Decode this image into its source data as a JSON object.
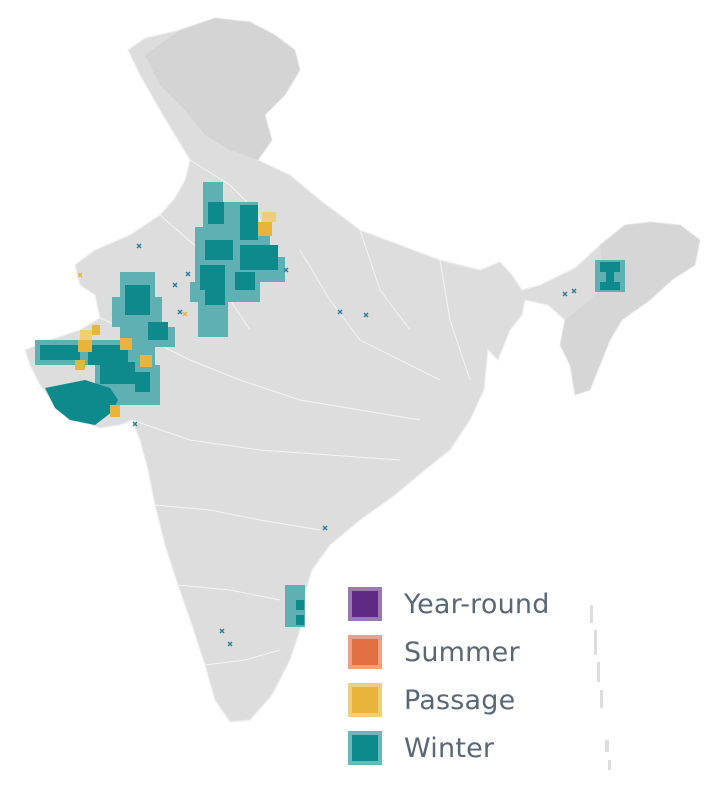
{
  "legend": {
    "items": [
      {
        "key": "year-round",
        "label": "Year-round",
        "fill": "#5e2a84",
        "border": "#9a78b4"
      },
      {
        "key": "summer",
        "label": "Summer",
        "fill": "#e07044",
        "border": "#eea283"
      },
      {
        "key": "passage",
        "label": "Passage",
        "fill": "#e8b43c",
        "border": "#f0cd7c"
      },
      {
        "key": "winter",
        "label": "Winter",
        "fill": "#0e8a8c",
        "border": "#6bb8bb"
      }
    ]
  },
  "colors": {
    "land": "#dcdcdc",
    "land_shade": "#cfcfcf",
    "border_line": "#f4f4f4",
    "winter_core": "#0e8a8c",
    "winter_light": "#5fb0b2",
    "passage": "#e8b43c",
    "marker": "#2a7f9e"
  }
}
